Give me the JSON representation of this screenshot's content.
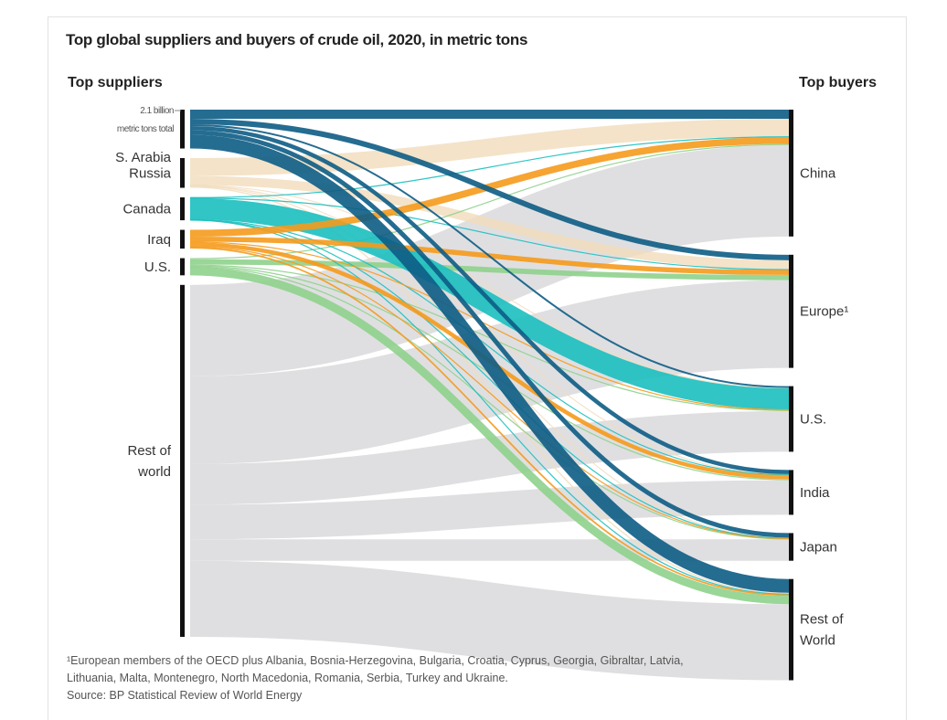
{
  "title": "Top global suppliers and buyers of crude oil, 2020, in metric tons",
  "left_header": "Top suppliers",
  "right_header": "Top buyers",
  "scale_note": [
    "2.1 billion",
    "metric tons total"
  ],
  "footnote": {
    "lines": [
      "¹European members of the OECD plus Albania, Bosnia-Herzegovina, Bulgaria, Croatia, Cyprus, Georgia, Gibraltar, Latvia,",
      "Lithuania, Malta, Montenegro, North Macedonia, Romania, Serbia, Turkey and Ukraine."
    ],
    "source": "Source: BP Statistical Review of World Energy"
  },
  "colors": {
    "S. Arabia": "#0d5c85",
    "Russia": "#f1dcbc",
    "Canada": "#1bbfbf",
    "Iraq": "#f59a1c",
    "U.S.": "#8fd18c",
    "Rest of world": "#d9d9dc",
    "bar": "#111111"
  },
  "chart_data": {
    "type": "sankey",
    "title": "Top global suppliers and buyers of crude oil, 2020, in metric tons",
    "total": "2.1 billion metric tons total",
    "sources": [
      {
        "id": "S. Arabia",
        "label": "S. Arabia",
        "value": 170
      },
      {
        "id": "Russia",
        "label": "Russia",
        "value": 130
      },
      {
        "id": "Canada",
        "label": "Canada",
        "value": 100
      },
      {
        "id": "Iraq",
        "label": "Iraq",
        "value": 82
      },
      {
        "id": "U.S.",
        "label": "U.S.",
        "value": 75
      },
      {
        "id": "Rest of world",
        "label": "Rest of\nworld",
        "value": 1540
      }
    ],
    "targets": [
      {
        "id": "China",
        "label": "China",
        "value": 555
      },
      {
        "id": "Europe",
        "label": "Europe¹",
        "value": 495
      },
      {
        "id": "U.S.",
        "label": "U.S.",
        "value": 287
      },
      {
        "id": "India",
        "label": "India",
        "value": 196
      },
      {
        "id": "Japan",
        "label": "Japan",
        "value": 121
      },
      {
        "id": "Rest of World",
        "label": "Rest of\nWorld",
        "value": 443
      }
    ],
    "flows": [
      {
        "source": "S. Arabia",
        "target": "China",
        "value": 40
      },
      {
        "source": "S. Arabia",
        "target": "Europe",
        "value": 24
      },
      {
        "source": "S. Arabia",
        "target": "U.S.",
        "value": 8
      },
      {
        "source": "S. Arabia",
        "target": "India",
        "value": 18
      },
      {
        "source": "S. Arabia",
        "target": "Japan",
        "value": 20
      },
      {
        "source": "S. Arabia",
        "target": "Rest of World",
        "value": 60
      },
      {
        "source": "Russia",
        "target": "China",
        "value": 78
      },
      {
        "source": "Russia",
        "target": "Europe",
        "value": 40
      },
      {
        "source": "Russia",
        "target": "U.S.",
        "value": 2
      },
      {
        "source": "Russia",
        "target": "India",
        "value": 2
      },
      {
        "source": "Russia",
        "target": "Japan",
        "value": 2
      },
      {
        "source": "Russia",
        "target": "Rest of World",
        "value": 6
      },
      {
        "source": "Canada",
        "target": "China",
        "value": 2
      },
      {
        "source": "Canada",
        "target": "Europe",
        "value": 2
      },
      {
        "source": "Canada",
        "target": "U.S.",
        "value": 92
      },
      {
        "source": "Canada",
        "target": "India",
        "value": 2
      },
      {
        "source": "Canada",
        "target": "Japan",
        "value": 1
      },
      {
        "source": "Canada",
        "target": "Rest of World",
        "value": 1
      },
      {
        "source": "Iraq",
        "target": "China",
        "value": 30
      },
      {
        "source": "Iraq",
        "target": "Europe",
        "value": 22
      },
      {
        "source": "Iraq",
        "target": "U.S.",
        "value": 3
      },
      {
        "source": "Iraq",
        "target": "India",
        "value": 18
      },
      {
        "source": "Iraq",
        "target": "Japan",
        "value": 2
      },
      {
        "source": "Iraq",
        "target": "Rest of World",
        "value": 7
      },
      {
        "source": "U.S.",
        "target": "China",
        "value": 5
      },
      {
        "source": "U.S.",
        "target": "Europe",
        "value": 23
      },
      {
        "source": "U.S.",
        "target": "U.S.",
        "value": 4
      },
      {
        "source": "U.S.",
        "target": "India",
        "value": 5
      },
      {
        "source": "U.S.",
        "target": "Japan",
        "value": 2
      },
      {
        "source": "U.S.",
        "target": "Rest of World",
        "value": 36
      },
      {
        "source": "Rest of world",
        "target": "China",
        "value": 400
      },
      {
        "source": "Rest of world",
        "target": "Europe",
        "value": 384
      },
      {
        "source": "Rest of world",
        "target": "U.S.",
        "value": 178
      },
      {
        "source": "Rest of world",
        "target": "India",
        "value": 151
      },
      {
        "source": "Rest of world",
        "target": "Japan",
        "value": 94
      },
      {
        "source": "Rest of world",
        "target": "Rest of World",
        "value": 333
      }
    ]
  }
}
